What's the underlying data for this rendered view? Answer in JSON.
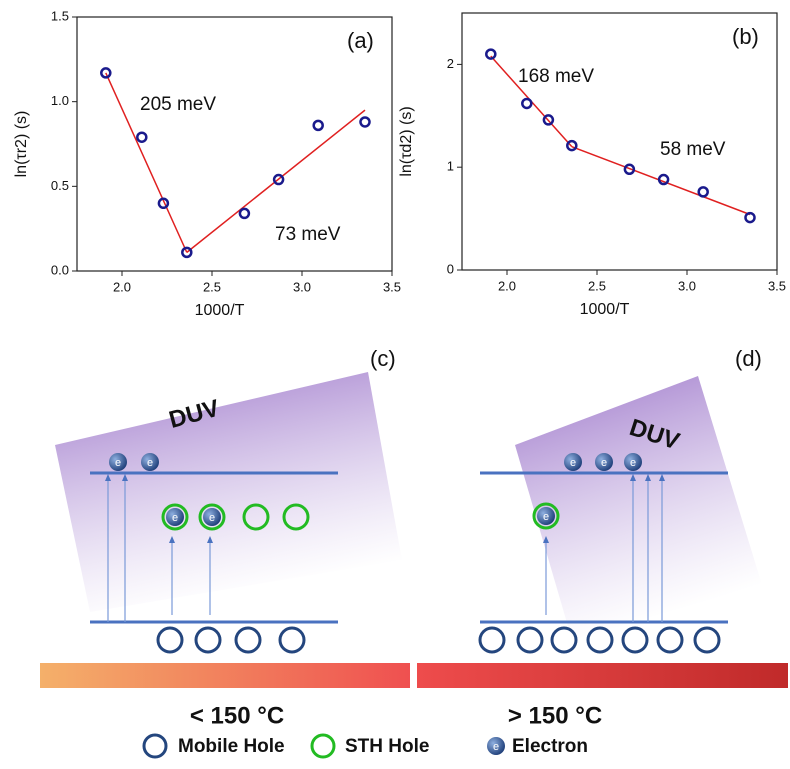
{
  "chart_data": [
    {
      "type": "scatter",
      "panel_label": "(a)",
      "xlabel": "1000/T",
      "ylabel": "ln(τr2) (s)",
      "xlim": [
        1.75,
        3.5
      ],
      "ylim": [
        0,
        1.5
      ],
      "xticks": [
        {
          "value": 2,
          "label": "2.0"
        },
        {
          "value": 2.5,
          "label": "2.5"
        },
        {
          "value": 3,
          "label": "3.0"
        },
        {
          "value": 3.5,
          "label": "3.5"
        }
      ],
      "yticks": [
        {
          "value": 0,
          "label": "0.0"
        },
        {
          "value": 0.5,
          "label": "0.5"
        },
        {
          "value": 1,
          "label": "1.0"
        },
        {
          "value": 1.5,
          "label": "1.5"
        }
      ],
      "x": [
        1.91,
        2.11,
        2.23,
        2.36,
        2.68,
        2.87,
        3.09,
        3.35
      ],
      "values": [
        1.17,
        0.79,
        0.4,
        0.11,
        0.34,
        0.54,
        0.86,
        0.88
      ],
      "color": "#1a1a8c",
      "fit_lines": [
        {
          "x": [
            1.91,
            2.36
          ],
          "values": [
            1.17,
            0.11
          ],
          "color": "#e02020"
        },
        {
          "x": [
            2.36,
            3.35
          ],
          "values": [
            0.11,
            0.95
          ],
          "color": "#e02020"
        }
      ],
      "annotations": [
        "205 meV",
        "73 meV"
      ]
    },
    {
      "type": "scatter",
      "panel_label": "(b)",
      "xlabel": "1000/T",
      "ylabel": "ln(τd2) (s)",
      "xlim": [
        1.75,
        3.5
      ],
      "ylim": [
        0,
        2.5
      ],
      "xticks": [
        {
          "value": 2,
          "label": "2.0"
        },
        {
          "value": 2.5,
          "label": "2.5"
        },
        {
          "value": 3,
          "label": "3.0"
        },
        {
          "value": 3.5,
          "label": "3.5"
        }
      ],
      "yticks": [
        0,
        1,
        2
      ],
      "x": [
        1.91,
        2.11,
        2.23,
        2.36,
        2.68,
        2.87,
        3.09,
        3.35
      ],
      "values": [
        2.1,
        1.62,
        1.46,
        1.21,
        0.98,
        0.88,
        0.76,
        0.51
      ],
      "color": "#1a1a8c",
      "fit_lines": [
        {
          "x": [
            1.91,
            2.36
          ],
          "values": [
            2.08,
            1.2
          ],
          "color": "#e02020"
        },
        {
          "x": [
            2.36,
            3.35
          ],
          "values": [
            1.2,
            0.54
          ],
          "color": "#e02020"
        }
      ],
      "annotations": [
        "168 meV",
        "58 meV"
      ]
    }
  ],
  "diagram": {
    "panel_c": "(c)",
    "panel_d": "(d)",
    "light": "DUV",
    "electron_symbol": "e",
    "low_temp": "< 150 °C",
    "high_temp": "> 150 °C",
    "legend": {
      "mobile_hole": "Mobile Hole",
      "sth_hole": "STH Hole",
      "electron": "Electron"
    }
  }
}
